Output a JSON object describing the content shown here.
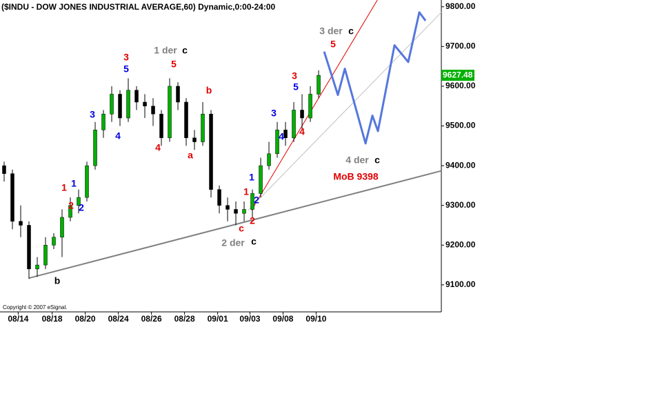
{
  "chart_data": {
    "type": "candlestick",
    "title": "($INDU - DOW JONES INDUSTRIAL AVERAGE,60) Dynamic,0:00-24:00",
    "copyright": "Copyright © 2007 eSignal.",
    "xlim": [
      -0.5,
      52.83
    ],
    "xticks": [
      {
        "value": 1.7,
        "label": "08/14"
      },
      {
        "value": 5.8,
        "label": "08/18"
      },
      {
        "value": 9.8,
        "label": "08/20"
      },
      {
        "value": 13.8,
        "label": "08/24"
      },
      {
        "value": 17.8,
        "label": "08/26"
      },
      {
        "value": 21.8,
        "label": "08/28"
      },
      {
        "value": 25.8,
        "label": "09/01"
      },
      {
        "value": 29.7,
        "label": "09/03"
      },
      {
        "value": 33.7,
        "label": "09/08"
      },
      {
        "value": 37.7,
        "label": "09/10"
      }
    ],
    "ylim": [
      9032,
      9817
    ],
    "yticks": [
      {
        "value": 9100,
        "label": "9100.00"
      },
      {
        "value": 9200,
        "label": "9200.00"
      },
      {
        "value": 9300,
        "label": "9300.00"
      },
      {
        "value": 9400,
        "label": "9400.00"
      },
      {
        "value": 9500,
        "label": "9500.00"
      },
      {
        "value": 9600,
        "label": "9600.00"
      },
      {
        "value": 9700,
        "label": "9700.00"
      },
      {
        "value": 9800,
        "label": "9800.00"
      }
    ],
    "up_color": "#00b000",
    "down_color": "#000000",
    "series": {
      "open": [
        9400,
        9380,
        9260,
        9250,
        9140,
        9150,
        9200,
        9220,
        9270,
        9300,
        9320,
        9400,
        9490,
        9530,
        9580,
        9520,
        9590,
        9560,
        9550,
        9530,
        9470,
        9600,
        9560,
        9470,
        9460,
        9530,
        9340,
        9300,
        9290,
        9280,
        9290,
        9330,
        9400,
        9430,
        9490,
        9470,
        9540,
        9520,
        9580
      ],
      "high": [
        9410,
        9390,
        9300,
        9260,
        9170,
        9220,
        9230,
        9290,
        9320,
        9340,
        9410,
        9510,
        9540,
        9600,
        9590,
        9620,
        9600,
        9580,
        9570,
        9540,
        9620,
        9610,
        9570,
        9490,
        9560,
        9540,
        9350,
        9320,
        9310,
        9310,
        9340,
        9420,
        9460,
        9510,
        9510,
        9560,
        9580,
        9600,
        9640
      ],
      "low": [
        9360,
        9240,
        9220,
        9115,
        9120,
        9140,
        9190,
        9170,
        9260,
        9280,
        9310,
        9390,
        9470,
        9510,
        9500,
        9510,
        9540,
        9520,
        9500,
        9450,
        9460,
        9540,
        9450,
        9440,
        9450,
        9320,
        9280,
        9260,
        9250,
        9260,
        9270,
        9320,
        9390,
        9420,
        9450,
        9460,
        9490,
        9510,
        9570
      ],
      "close": [
        9380,
        9260,
        9250,
        9140,
        9150,
        9200,
        9220,
        9270,
        9300,
        9320,
        9400,
        9490,
        9530,
        9580,
        9520,
        9590,
        9560,
        9550,
        9530,
        9470,
        9600,
        9560,
        9470,
        9460,
        9530,
        9340,
        9300,
        9290,
        9280,
        9290,
        9330,
        9400,
        9430,
        9490,
        9470,
        9540,
        9520,
        9580,
        9627.48
      ]
    },
    "last_price": 9627.48,
    "trendlines": [
      {
        "color": "#808080",
        "x": [
          3.0,
          52.83
        ],
        "y": [
          9117,
          9387
        ]
      },
      {
        "color": "#e00000",
        "x": [
          29.9,
          45.1
        ],
        "y": [
          9288,
          9817
        ]
      },
      {
        "color": "#c0c0c0",
        "x": [
          29.5,
          52.83
        ],
        "y": [
          9288,
          9786
        ]
      }
    ],
    "projection": {
      "color": "#5577dd",
      "x": [
        38.67,
        40.33,
        41.17,
        43.67,
        44.5,
        45.17,
        47.17,
        48.83,
        50.17,
        50.92
      ],
      "y": [
        9687,
        9578,
        9644,
        9456,
        9526,
        9487,
        9703,
        9661,
        9786,
        9765
      ]
    },
    "annotations": [
      {
        "text": "3",
        "color": "#e00000"
      },
      {
        "text": "5",
        "color": "#0000e0"
      },
      {
        "text": "1 der",
        "color": "#808080"
      },
      {
        "text": "c",
        "color": "#000000"
      },
      {
        "text": "5",
        "color": "#e00000"
      },
      {
        "text": "b",
        "color": "#e00000"
      },
      {
        "text": "3",
        "color": "#0000e0"
      },
      {
        "text": "4",
        "color": "#0000e0"
      },
      {
        "text": "4",
        "color": "#e00000"
      },
      {
        "text": "a",
        "color": "#e00000"
      },
      {
        "text": "1",
        "color": "#e00000"
      },
      {
        "text": "1",
        "color": "#0000e0"
      },
      {
        "text": "2",
        "color": "#e00000"
      },
      {
        "text": "2",
        "color": "#0000e0"
      },
      {
        "text": "b",
        "color": "#000000"
      },
      {
        "text": "1",
        "color": "#e00000"
      },
      {
        "text": "1",
        "color": "#0000e0"
      },
      {
        "text": "2",
        "color": "#0000e0"
      },
      {
        "text": "2",
        "color": "#e00000"
      },
      {
        "text": "c",
        "color": "#e00000"
      },
      {
        "text": "2 der",
        "color": "#808080"
      },
      {
        "text": "c",
        "color": "#000000"
      },
      {
        "text": "3",
        "color": "#e00000"
      },
      {
        "text": "5",
        "color": "#0000e0"
      },
      {
        "text": "3",
        "color": "#0000e0"
      },
      {
        "text": "4",
        "color": "#0000e0"
      },
      {
        "text": "4",
        "color": "#e00000"
      },
      {
        "text": "3 der",
        "color": "#808080"
      },
      {
        "text": "c",
        "color": "#000000"
      },
      {
        "text": "5",
        "color": "#e00000"
      },
      {
        "text": "4 der",
        "color": "#808080"
      },
      {
        "text": "c",
        "color": "#000000"
      },
      {
        "text": "MoB 9398",
        "color": "#e00000"
      }
    ]
  }
}
